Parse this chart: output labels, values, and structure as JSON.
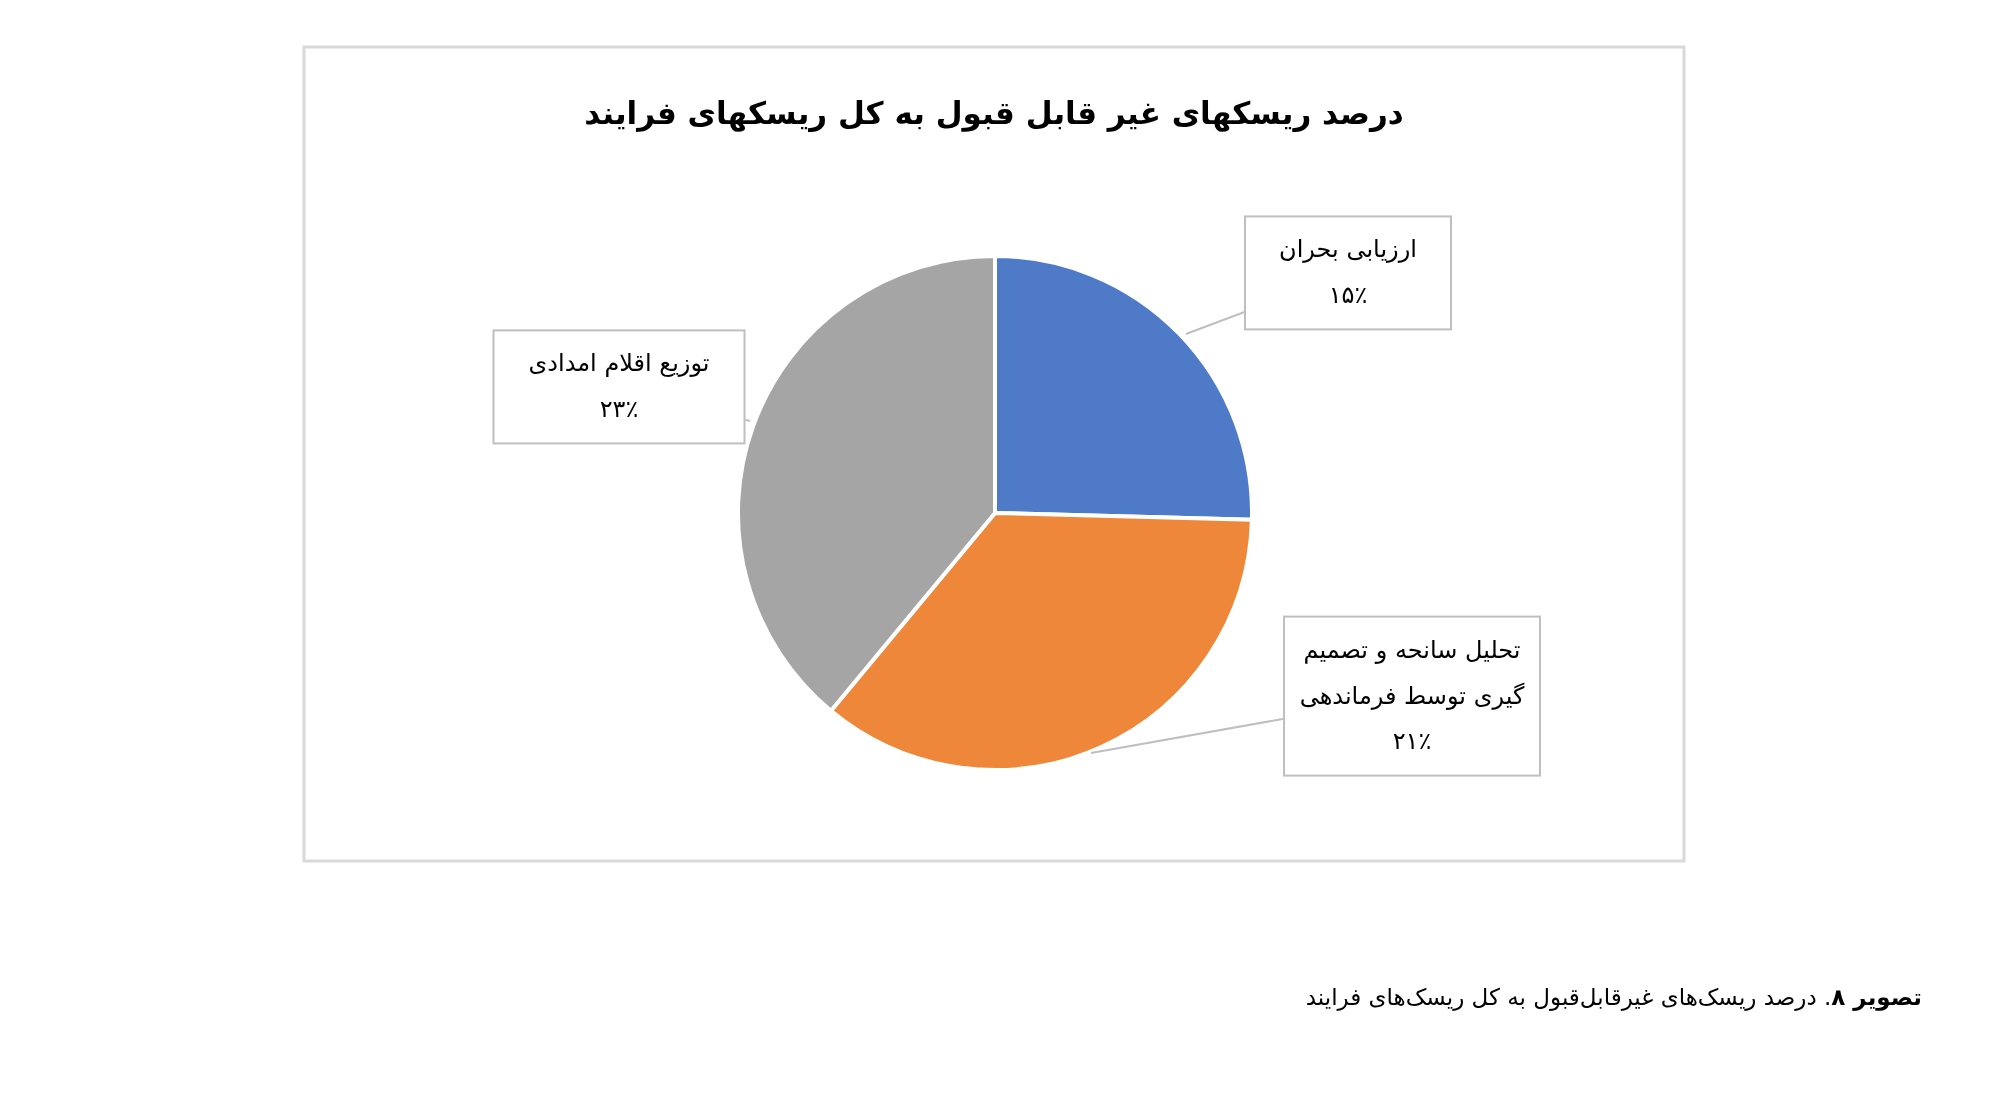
{
  "chart_data": {
    "type": "pie",
    "title": "درصد ریسکهای غیر قابل قبول به کل ریسکهای فرایند",
    "categories": [
      "ارزیابی بحران",
      "تحلیل سانحه و تصمیم گیری توسط فرماندهی",
      "توزیع اقلام امدادی"
    ],
    "values": [
      15,
      21,
      23
    ],
    "value_labels": [
      "۱۵٪",
      "۲۱٪",
      "۲۳٪"
    ],
    "colors": [
      "#4e7ac7",
      "#ee873a",
      "#a5a5a5"
    ],
    "annotations": [
      "**تصویر ۸**. درصد ریسک‌های غیرقابل‌قبول به کل ریسک‌های فرایند"
    ]
  }
}
